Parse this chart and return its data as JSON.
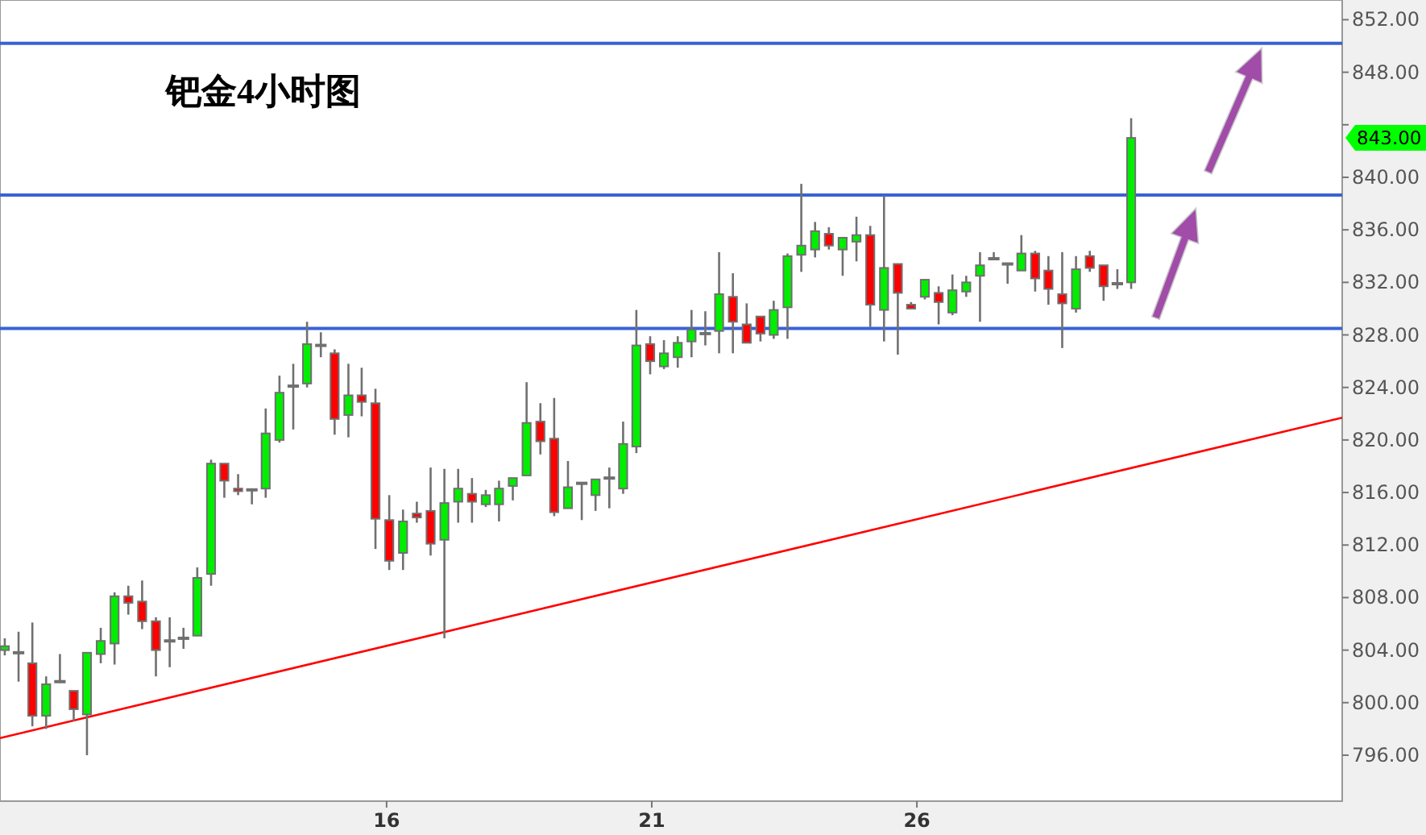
{
  "chart_data": {
    "type": "candlestick",
    "title": "钯金4小时图",
    "x": [
      8.8,
      9.06,
      9.32,
      9.58,
      9.84,
      10.1,
      10.35,
      10.61,
      10.87,
      11.13,
      11.39,
      11.65,
      11.91,
      12.17,
      12.43,
      12.69,
      12.94,
      13.2,
      13.46,
      13.72,
      13.98,
      14.24,
      14.5,
      14.76,
      15.02,
      15.28,
      15.53,
      15.79,
      16.05,
      16.31,
      16.57,
      16.83,
      17.09,
      17.35,
      17.61,
      17.87,
      18.12,
      18.38,
      18.64,
      18.9,
      19.16,
      19.42,
      19.68,
      19.94,
      20.2,
      20.46,
      20.71,
      20.97,
      21.23,
      21.49,
      21.75,
      22.01,
      22.27,
      22.53,
      22.79,
      23.05,
      23.3,
      23.56,
      23.82,
      24.08,
      24.34,
      24.6,
      24.86,
      25.12,
      25.38,
      25.64,
      25.89,
      26.15,
      26.41,
      26.67,
      26.93,
      27.19,
      27.45,
      27.71,
      27.97,
      28.23,
      28.48,
      28.74,
      29.0,
      29.26,
      29.52,
      29.78,
      30.04
    ],
    "ohlc": [
      [
        804.0,
        804.9,
        803.6,
        804.3
      ],
      [
        803.8,
        805.4,
        801.6,
        803.8
      ],
      [
        803.0,
        806.1,
        798.2,
        799.0
      ],
      [
        799.0,
        802.0,
        798.0,
        801.4
      ],
      [
        801.6,
        803.7,
        801.5,
        801.6
      ],
      [
        800.9,
        800.9,
        798.6,
        799.5
      ],
      [
        799.1,
        803.8,
        796.0,
        803.8
      ],
      [
        803.7,
        805.7,
        803.0,
        804.7
      ],
      [
        804.5,
        808.4,
        802.9,
        808.1
      ],
      [
        808.1,
        808.9,
        806.7,
        807.6
      ],
      [
        807.7,
        809.3,
        805.6,
        806.2
      ],
      [
        806.2,
        806.5,
        802.0,
        804.0
      ],
      [
        804.7,
        806.5,
        802.7,
        804.7
      ],
      [
        804.9,
        805.7,
        804.1,
        804.9
      ],
      [
        805.1,
        810.3,
        805.1,
        809.5
      ],
      [
        809.8,
        818.5,
        808.9,
        818.2
      ],
      [
        818.2,
        818.2,
        815.6,
        816.9
      ],
      [
        816.3,
        817.4,
        815.8,
        816.1
      ],
      [
        816.2,
        816.3,
        815.1,
        816.2
      ],
      [
        816.3,
        822.4,
        815.6,
        820.5
      ],
      [
        820.0,
        824.9,
        819.8,
        823.6
      ],
      [
        824.1,
        825.8,
        820.8,
        824.1
      ],
      [
        824.3,
        829.0,
        824.0,
        827.3
      ],
      [
        827.2,
        828.2,
        826.3,
        827.2
      ],
      [
        826.6,
        826.9,
        820.4,
        821.6
      ],
      [
        821.9,
        825.8,
        820.2,
        823.4
      ],
      [
        823.4,
        825.5,
        821.8,
        822.9
      ],
      [
        822.8,
        823.9,
        811.7,
        814.0
      ],
      [
        813.9,
        815.8,
        810.1,
        810.8
      ],
      [
        811.4,
        814.7,
        810.1,
        813.8
      ],
      [
        814.4,
        815.3,
        813.7,
        814.1
      ],
      [
        814.6,
        817.9,
        811.2,
        812.1
      ],
      [
        812.4,
        817.8,
        804.9,
        815.2
      ],
      [
        815.3,
        817.8,
        813.7,
        816.3
      ],
      [
        815.9,
        817.1,
        813.7,
        815.3
      ],
      [
        815.1,
        816.2,
        814.9,
        815.8
      ],
      [
        815.1,
        816.9,
        813.8,
        816.3
      ],
      [
        816.5,
        817.1,
        815.4,
        817.1
      ],
      [
        817.3,
        824.4,
        817.3,
        821.3
      ],
      [
        821.4,
        822.8,
        818.9,
        819.9
      ],
      [
        820.1,
        823.2,
        814.2,
        814.5
      ],
      [
        814.8,
        818.4,
        814.8,
        816.4
      ],
      [
        816.7,
        816.8,
        813.9,
        816.7
      ],
      [
        815.8,
        817.0,
        814.6,
        817.0
      ],
      [
        817.1,
        817.9,
        814.8,
        817.1
      ],
      [
        816.3,
        821.4,
        815.9,
        819.7
      ],
      [
        819.5,
        829.9,
        819.0,
        827.2
      ],
      [
        827.3,
        827.9,
        825.0,
        826.0
      ],
      [
        825.6,
        827.6,
        825.4,
        826.6
      ],
      [
        826.3,
        827.9,
        825.5,
        827.4
      ],
      [
        827.5,
        829.9,
        826.3,
        828.4
      ],
      [
        828.1,
        829.8,
        827.2,
        828.1
      ],
      [
        828.3,
        834.3,
        826.6,
        831.1
      ],
      [
        830.9,
        832.7,
        826.6,
        829.0
      ],
      [
        828.8,
        830.4,
        827.4,
        827.4
      ],
      [
        829.4,
        829.4,
        827.5,
        828.1
      ],
      [
        828.0,
        830.6,
        827.7,
        829.9
      ],
      [
        830.1,
        834.2,
        827.7,
        834.0
      ],
      [
        834.1,
        839.5,
        832.8,
        834.8
      ],
      [
        834.5,
        836.6,
        833.9,
        835.9
      ],
      [
        835.7,
        836.2,
        834.5,
        834.8
      ],
      [
        834.5,
        835.4,
        832.5,
        835.4
      ],
      [
        835.1,
        837.0,
        833.6,
        835.6
      ],
      [
        835.6,
        836.3,
        828.6,
        830.3
      ],
      [
        829.9,
        838.6,
        827.5,
        833.1
      ],
      [
        833.4,
        833.4,
        826.5,
        831.2
      ],
      [
        830.3,
        830.5,
        830.0,
        830.0
      ],
      [
        830.9,
        832.2,
        830.7,
        832.2
      ],
      [
        831.2,
        831.7,
        828.8,
        830.5
      ],
      [
        829.7,
        832.6,
        829.5,
        831.4
      ],
      [
        831.3,
        832.5,
        830.9,
        832.0
      ],
      [
        832.5,
        834.3,
        829.0,
        833.3
      ],
      [
        833.8,
        834.3,
        833.7,
        833.8
      ],
      [
        833.4,
        833.5,
        831.9,
        833.4
      ],
      [
        832.9,
        835.6,
        832.9,
        834.2
      ],
      [
        834.2,
        834.4,
        831.3,
        832.3
      ],
      [
        832.9,
        834.0,
        830.3,
        831.5
      ],
      [
        831.1,
        834.3,
        827.0,
        830.4
      ],
      [
        830.0,
        834.0,
        829.7,
        833.0
      ],
      [
        834.0,
        834.4,
        832.8,
        833.1
      ],
      [
        833.3,
        833.3,
        830.6,
        831.7
      ],
      [
        831.9,
        833.0,
        831.5,
        831.9
      ],
      [
        832.0,
        844.5,
        831.5,
        843.0
      ]
    ],
    "series": [
      {
        "type": "line",
        "x": [
          8.71,
          34.02
        ],
        "values": [
          797.3,
          821.7
        ],
        "color": "#ff0000"
      }
    ],
    "xlim": [
      8.71,
      34.02
    ],
    "xticks": [
      16,
      21,
      26
    ],
    "ylim": [
      792.5,
      853.5
    ],
    "yticks": [
      {
        "value": 796,
        "label": "796.00"
      },
      {
        "value": 800,
        "label": "800.00"
      },
      {
        "value": 804,
        "label": "804.00"
      },
      {
        "value": 808,
        "label": "808.00"
      },
      {
        "value": 812,
        "label": "812.00"
      },
      {
        "value": 816,
        "label": "816.00"
      },
      {
        "value": 820,
        "label": "820.00"
      },
      {
        "value": 824,
        "label": "824.00"
      },
      {
        "value": 828,
        "label": "828.00"
      },
      {
        "value": 832,
        "label": "832.00"
      },
      {
        "value": 836,
        "label": "836.00"
      },
      {
        "value": 840,
        "label": "840.00"
      },
      {
        "value": 844,
        "label": null
      },
      {
        "value": 848,
        "label": "848.00"
      },
      {
        "value": 852,
        "label": "852.00"
      }
    ],
    "ref_lines": [
      {
        "axis": "y",
        "value": 850.2,
        "color": "#3a62d6"
      },
      {
        "axis": "y",
        "value": 838.65,
        "color": "#3a62d6"
      },
      {
        "axis": "y",
        "value": 828.5,
        "color": "#3a62d6"
      }
    ],
    "annotations": [
      "843.00"
    ],
    "grid": false
  }
}
